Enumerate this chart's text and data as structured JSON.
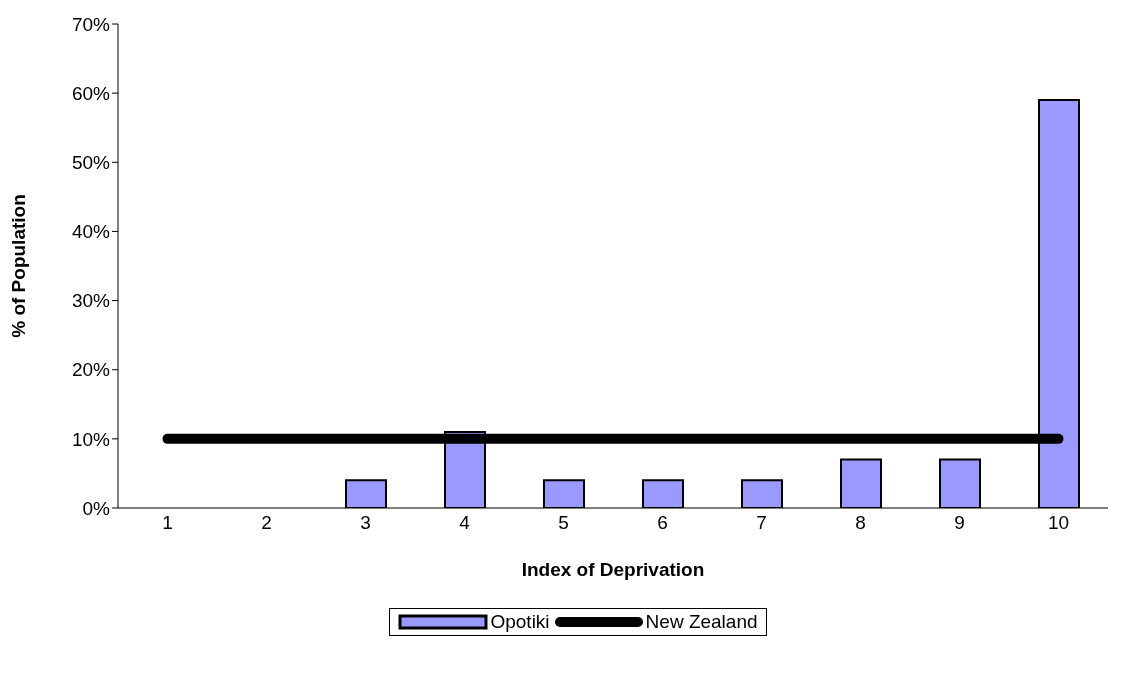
{
  "chart_data": {
    "type": "bar",
    "xlabel": "Index of Deprivation",
    "ylabel": "% of Population",
    "categories": [
      "1",
      "2",
      "3",
      "4",
      "5",
      "6",
      "7",
      "8",
      "9",
      "10"
    ],
    "series": [
      {
        "name": "Opotiki",
        "color": "#9999ff",
        "values": [
          0,
          0,
          4,
          11,
          4,
          4,
          4,
          7,
          7,
          59
        ]
      },
      {
        "name": "New Zealand",
        "type": "line",
        "color": "#000000",
        "values": [
          10,
          10,
          10,
          10,
          10,
          10,
          10,
          10,
          10,
          10
        ]
      }
    ],
    "ylim": [
      0,
      70
    ],
    "yticks": [
      {
        "value": 0,
        "label": "0%"
      },
      {
        "value": 10,
        "label": "10%"
      },
      {
        "value": 20,
        "label": "20%"
      },
      {
        "value": 30,
        "label": "30%"
      },
      {
        "value": 40,
        "label": "40%"
      },
      {
        "value": 50,
        "label": "50%"
      },
      {
        "value": 60,
        "label": "60%"
      },
      {
        "value": 70,
        "label": "70%"
      }
    ],
    "grid": false,
    "legend": "bottom",
    "marker": "none",
    "line_style": "solid"
  }
}
